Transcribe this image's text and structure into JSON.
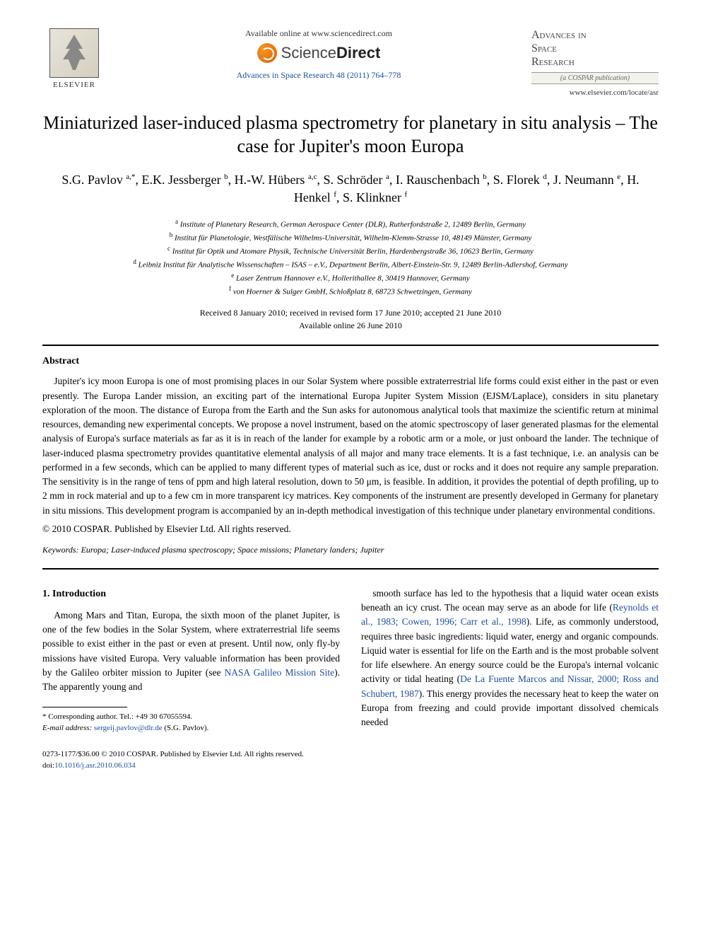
{
  "header": {
    "elsevier_label": "ELSEVIER",
    "available_text": "Available online at www.sciencedirect.com",
    "sd_brand_1": "Science",
    "sd_brand_2": "Direct",
    "journal_ref": "Advances in Space Research 48 (2011) 764–778",
    "journal_title_1": "Advances in",
    "journal_title_2": "Space",
    "journal_title_3": "Research",
    "cospar": "(a COSPAR publication)",
    "journal_url": "www.elsevier.com/locate/asr"
  },
  "title": "Miniaturized laser-induced plasma spectrometry for planetary in situ analysis – The case for Jupiter's moon Europa",
  "authors_html": "S.G. Pavlov <sup>a,*</sup>, E.K. Jessberger <sup>b</sup>, H.-W. Hübers <sup>a,c</sup>, S. Schröder <sup>a</sup>, I. Rauschenbach <sup>b</sup>, S. Florek <sup>d</sup>, J. Neumann <sup>e</sup>, H. Henkel <sup>f</sup>, S. Klinkner <sup>f</sup>",
  "affiliations": [
    "<sup>a</sup> Institute of Planetary Research, German Aerospace Center (DLR), Rutherfordstraße 2, 12489 Berlin, Germany",
    "<sup>b</sup> Institut für Planetologie, Westfälische Wilhelms-Universität, Wilhelm-Klemm-Strasse 10, 48149 Münster, Germany",
    "<sup>c</sup> Institut für Optik und Atomare Physik, Technische Universität Berlin, Hardenbergstraße 36, 10623 Berlin, Germany",
    "<sup>d</sup> Leibniz Institut für Analytische Wissenschaften – ISAS – e.V., Department Berlin, Albert-Einstein-Str. 9, 12489 Berlin-Adlershof, Germany",
    "<sup>e</sup> Laser Zentrum Hannover e.V., Hollerithallee 8, 30419 Hannover, Germany",
    "<sup>f</sup> von Hoerner & Sulger GmbH, Schloßplatz 8, 68723 Schwetzingen, Germany"
  ],
  "dates": {
    "received": "Received 8 January 2010; received in revised form 17 June 2010; accepted 21 June 2010",
    "online": "Available online 26 June 2010"
  },
  "abstract": {
    "heading": "Abstract",
    "body": "Jupiter's icy moon Europa is one of most promising places in our Solar System where possible extraterrestrial life forms could exist either in the past or even presently. The Europa Lander mission, an exciting part of the international Europa Jupiter System Mission (EJSM/Laplace), considers in situ planetary exploration of the moon. The distance of Europa from the Earth and the Sun asks for autonomous analytical tools that maximize the scientific return at minimal resources, demanding new experimental concepts. We propose a novel instrument, based on the atomic spectroscopy of laser generated plasmas for the elemental analysis of Europa's surface materials as far as it is in reach of the lander for example by a robotic arm or a mole, or just onboard the lander. The technique of laser-induced plasma spectrometry provides quantitative elemental analysis of all major and many trace elements. It is a fast technique, i.e. an analysis can be performed in a few seconds, which can be applied to many different types of material such as ice, dust or rocks and it does not require any sample preparation. The sensitivity is in the range of tens of ppm and high lateral resolution, down to 50 μm, is feasible. In addition, it provides the potential of depth profiling, up to 2 mm in rock material and up to a few cm in more transparent icy matrices. Key components of the instrument are presently developed in Germany for planetary in situ missions. This development program is accompanied by an in-depth methodical investigation of this technique under planetary environmental conditions.",
    "copyright": "© 2010 COSPAR. Published by Elsevier Ltd. All rights reserved."
  },
  "keywords_label": "Keywords:",
  "keywords": "Europa; Laser-induced plasma spectroscopy; Space missions; Planetary landers; Jupiter",
  "section1": {
    "heading": "1. Introduction",
    "col1": "Among Mars and Titan, Europa, the sixth moon of the planet Jupiter, is one of the few bodies in the Solar System, where extraterrestrial life seems possible to exist either in the past or even at present. Until now, only fly-by missions have visited Europa. Very valuable information has been provided by the Galileo orbiter mission to Jupiter (see <span class=\"link\">NASA Galileo Mission Site</span>). The apparently young and",
    "col2": "smooth surface has led to the hypothesis that a liquid water ocean exists beneath an icy crust. The ocean may serve as an abode for life (<span class=\"link\">Reynolds et al., 1983; Cowen, 1996; Carr et al., 1998</span>). Life, as commonly understood, requires three basic ingredients: liquid water, energy and organic compounds. Liquid water is essential for life on the Earth and is the most probable solvent for life elsewhere. An energy source could be the Europa's internal volcanic activity or tidal heating (<span class=\"link\">De La Fuente Marcos and Nissar, 2000; Ross and Schubert, 1987</span>). This energy provides the necessary heat to keep the water on Europa from freezing and could provide important dissolved chemicals needed"
  },
  "footnotes": {
    "corresponding": "* Corresponding author. Tel.: +49 30 67055594.",
    "email_label": "E-mail address:",
    "email": "sergeij.pavlov@dlr.de",
    "email_attr": "(S.G. Pavlov)."
  },
  "footer": {
    "issn": "0273-1177/$36.00 © 2010 COSPAR. Published by Elsevier Ltd. All rights reserved.",
    "doi": "doi:10.1016/j.asr.2010.06.034"
  },
  "colors": {
    "link": "#1a4f9c",
    "text": "#000000",
    "background": "#ffffff"
  }
}
